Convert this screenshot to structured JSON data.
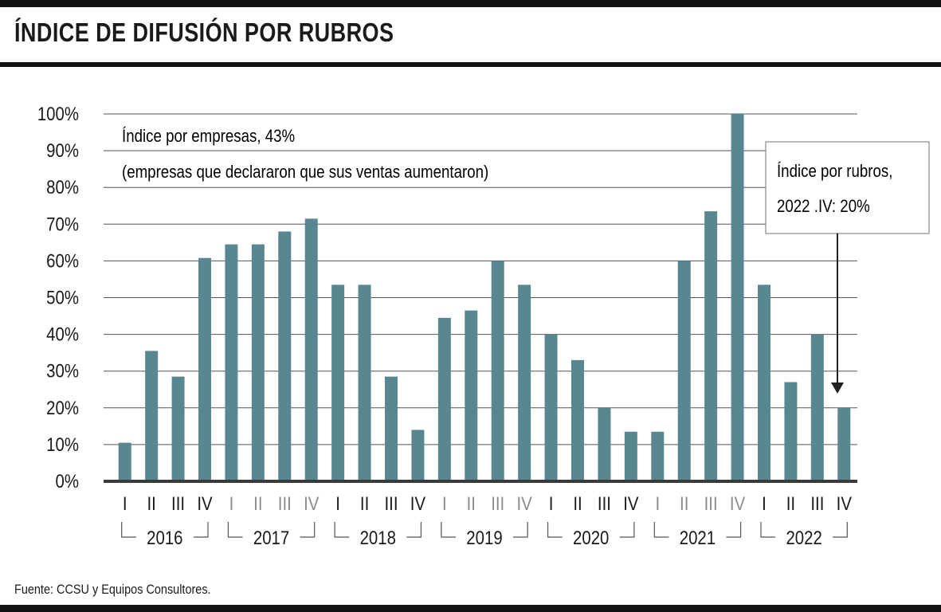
{
  "title": "ÍNDICE DE DIFUSIÓN POR RUBROS",
  "source": "Fuente: CCSU y Equipos Consultores.",
  "colors": {
    "bar": "#588791",
    "grid": "#555555",
    "axis": "#3a3a3a",
    "text": "#1a1a1a",
    "muted": "#8c8c8c"
  },
  "chart_data": {
    "type": "bar",
    "ylim": [
      0,
      100
    ],
    "yticks": [
      "0%",
      "10%",
      "20%",
      "30%",
      "40%",
      "50%",
      "60%",
      "70%",
      "80%",
      "90%",
      "100%"
    ],
    "grid": true,
    "annotations": {
      "company_index_line1": "Índice por empresas, 43%",
      "company_index_line2": "(empresas que declararon que sus ventas aumentaron)",
      "callout_line1": "Índice por rubros,",
      "callout_line2": "2022 .IV: 20%"
    },
    "groups": [
      {
        "year": "2016",
        "quarters": [
          "I",
          "II",
          "III",
          "IV"
        ],
        "muted": false,
        "values": [
          10.5,
          35.5,
          28.5,
          60.8
        ]
      },
      {
        "year": "2017",
        "quarters": [
          "I",
          "II",
          "III",
          "IV"
        ],
        "muted": true,
        "values": [
          64.5,
          64.5,
          68,
          71.5
        ]
      },
      {
        "year": "2018",
        "quarters": [
          "I",
          "II",
          "III",
          "IV"
        ],
        "muted": false,
        "values": [
          53.5,
          53.5,
          28.5,
          14
        ]
      },
      {
        "year": "2019",
        "quarters": [
          "I",
          "II",
          "III",
          "IV"
        ],
        "muted": true,
        "values": [
          44.5,
          46.5,
          60,
          53.5
        ]
      },
      {
        "year": "2020",
        "quarters": [
          "I",
          "II",
          "III",
          "IV"
        ],
        "muted": false,
        "values": [
          40,
          33,
          20,
          13.5
        ]
      },
      {
        "year": "2021",
        "quarters": [
          "I",
          "II",
          "III",
          "IV"
        ],
        "muted": true,
        "values": [
          13.5,
          60,
          73.5,
          100
        ]
      },
      {
        "year": "2022",
        "quarters": [
          "I",
          "II",
          "III",
          "IV"
        ],
        "muted": false,
        "values": [
          53.5,
          27,
          40,
          20
        ]
      }
    ]
  }
}
